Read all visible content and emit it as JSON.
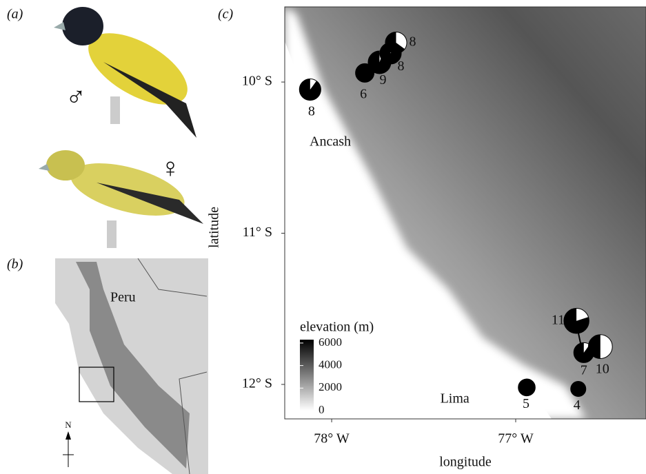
{
  "panels": {
    "a": {
      "label": "(a)",
      "male_symbol": "♂",
      "female_symbol": "♀"
    },
    "b": {
      "label": "(b)",
      "country": "Peru",
      "north": "N"
    },
    "c": {
      "label": "(c)"
    }
  },
  "map": {
    "type": "pie-map",
    "xlabel": "longitude",
    "ylabel": "latitude",
    "xlim": [
      -78.255,
      -76.292
    ],
    "ylim": [
      -12.228,
      -9.503
    ],
    "xticks": [
      {
        "value": -78,
        "label": "78° W"
      },
      {
        "value": -77,
        "label": "77° W"
      }
    ],
    "yticks": [
      {
        "value": -12,
        "label": "12° S"
      },
      {
        "value": -11,
        "label": "11° S"
      },
      {
        "value": -10,
        "label": "10° S"
      }
    ],
    "places": [
      {
        "name": "Ancash",
        "lon": -78.12,
        "lat": -10.4
      },
      {
        "name": "Lima",
        "lon": -77.41,
        "lat": -12.1
      }
    ],
    "sites": [
      {
        "n": 8,
        "lon": -78.117,
        "lat": -10.05,
        "black_fraction": 0.9
      },
      {
        "n": 6,
        "lon": -77.82,
        "lat": -9.94,
        "black_fraction": 1
      },
      {
        "n": 9,
        "lon": -77.74,
        "lat": -9.87,
        "black_fraction": 0.95
      },
      {
        "n": 8,
        "lon": -77.68,
        "lat": -9.81,
        "black_fraction": 0.9
      },
      {
        "n": 8,
        "lon": -77.65,
        "lat": -9.74,
        "black_fraction": 0.65
      },
      {
        "n": 11,
        "lon": -76.67,
        "lat": -11.58,
        "black_fraction": 0.8
      },
      {
        "n": 7,
        "lon": -76.63,
        "lat": -11.79,
        "black_fraction": 0.9
      },
      {
        "n": 10,
        "lon": -76.54,
        "lat": -11.75,
        "black_fraction": 0.5
      },
      {
        "n": 5,
        "lon": -76.94,
        "lat": -12.02,
        "black_fraction": 1
      },
      {
        "n": 4,
        "lon": -76.66,
        "lat": -12.03,
        "black_fraction": 1
      }
    ],
    "legend": {
      "title": "elevation (m)",
      "lim": [
        0,
        6300
      ],
      "ticks": [
        0,
        2000,
        4000,
        6000
      ]
    }
  }
}
